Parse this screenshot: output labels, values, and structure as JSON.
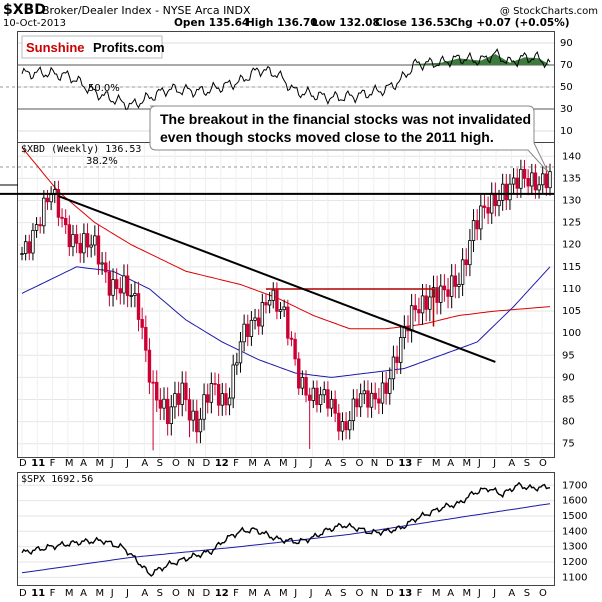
{
  "header": {
    "symbol": "$XBD",
    "name": "Broker/Dealer Index - NYSE Arca INDX",
    "date": "10-Oct-2013",
    "copyright": "@ StockCharts.com",
    "open": "Open 135.64",
    "high": "High 136.70",
    "low": "Low 132.08",
    "close": "Close 136.53",
    "chg": "Chg +0.07 (+0.05%)",
    "logo_a": "Sunshine",
    "logo_b": "Profits.com"
  },
  "rsi": {
    "ticks": [
      "90",
      "70",
      "50",
      "30",
      "10"
    ],
    "fib_label": "50.0%"
  },
  "main": {
    "legend": "$XBD (Weekly) 136.53",
    "fib_label": "38.2%",
    "ticks": [
      "140",
      "135",
      "130",
      "125",
      "120",
      "115",
      "110",
      "105",
      "100",
      "95",
      "90",
      "85",
      "80",
      "75"
    ],
    "callout": [
      "The breakout in the financial stocks was not invalidated",
      "even though stocks moved close to the 2011 high."
    ]
  },
  "months": [
    "D",
    "11",
    "F",
    "M",
    "A",
    "M",
    "J",
    "J",
    "A",
    "S",
    "O",
    "N",
    "D",
    "12",
    "F",
    "M",
    "A",
    "M",
    "J",
    "J",
    "A",
    "S",
    "O",
    "N",
    "D",
    "13",
    "F",
    "M",
    "A",
    "M",
    "J",
    "J",
    "A",
    "S",
    "O"
  ],
  "spx": {
    "legend": "$SPX 1692.56",
    "ticks": [
      "1700",
      "1600",
      "1500",
      "1400",
      "1300",
      "1200",
      "1100"
    ]
  },
  "colors": {
    "up": "#000000",
    "down": "#cc0033",
    "ma_red": "#dd0000",
    "ma_blue": "#1a1aaa",
    "rsi_fill": "#3d7a3d",
    "logo_red": "#cc0000"
  },
  "chart_data": [
    {
      "type": "line",
      "name": "RSI",
      "ylim": [
        0,
        100
      ],
      "x": [
        0,
        6,
        13,
        20,
        30,
        40,
        50,
        60,
        65,
        70,
        75,
        85,
        92,
        100,
        104,
        108,
        115,
        120,
        126,
        130,
        134,
        138,
        142,
        145
      ],
      "values": [
        62,
        63,
        60,
        45,
        33,
        48,
        46,
        55,
        66,
        62,
        46,
        40,
        42,
        48,
        56,
        71,
        72,
        76,
        74,
        80,
        72,
        77,
        76,
        70
      ]
    },
    {
      "type": "candlestick",
      "name": "$XBD Weekly",
      "ylim": [
        72,
        143
      ],
      "x_unit": "weeks since Dec 2010",
      "close_anchors": {
        "x": [
          0,
          4,
          8,
          12,
          16,
          20,
          24,
          28,
          32,
          36,
          40,
          44,
          48,
          52,
          56,
          60,
          64,
          68,
          72,
          76,
          80,
          84,
          88,
          92,
          96,
          100,
          104,
          108,
          112,
          116,
          120,
          124,
          128,
          132,
          136,
          140,
          145
        ],
        "close": [
          118,
          125,
          131,
          124,
          120,
          119,
          112,
          110,
          105,
          88,
          80,
          88,
          79,
          87,
          85,
          98,
          102,
          110,
          103,
          90,
          86,
          84,
          79,
          85,
          84,
          89,
          97,
          106,
          109,
          108,
          113,
          124,
          128,
          133,
          134,
          134,
          136.5
        ]
      },
      "horizontal_lines": [
        131.5,
        110
      ],
      "trendline": {
        "from": [
          10,
          131
        ],
        "to": [
          130,
          93.5
        ]
      },
      "ma_red": {
        "x": [
          0,
          10,
          20,
          30,
          45,
          60,
          70,
          80,
          90,
          100,
          110,
          120,
          130,
          145
        ],
        "values": [
          142,
          132,
          125,
          120,
          114,
          111,
          108,
          104,
          101,
          101,
          102,
          104,
          105,
          106
        ]
      },
      "ma_blue": {
        "x": [
          0,
          5,
          15,
          25,
          35,
          45,
          55,
          65,
          75,
          85,
          95,
          105,
          115,
          125,
          135,
          145
        ],
        "values": [
          109,
          111,
          115,
          114,
          110,
          103,
          98,
          94,
          91,
          90,
          91,
          92,
          95,
          98,
          106,
          115
        ]
      }
    },
    {
      "type": "line",
      "name": "$SPX",
      "ylim": [
        1050,
        1780
      ],
      "x": [
        0,
        8,
        16,
        22,
        28,
        32,
        35,
        40,
        46,
        52,
        56,
        60,
        64,
        70,
        76,
        80,
        84,
        88,
        92,
        96,
        100,
        104,
        108,
        112,
        116,
        120,
        124,
        128,
        132,
        136,
        140,
        145
      ],
      "values": [
        1260,
        1300,
        1330,
        1340,
        1290,
        1200,
        1120,
        1180,
        1230,
        1270,
        1350,
        1400,
        1410,
        1350,
        1330,
        1360,
        1410,
        1440,
        1420,
        1390,
        1400,
        1420,
        1480,
        1520,
        1560,
        1580,
        1650,
        1680,
        1640,
        1700,
        1680,
        1693
      ],
      "ma_blue": {
        "x": [
          0,
          30,
          60,
          90,
          120,
          145
        ],
        "values": [
          1130,
          1230,
          1300,
          1380,
          1490,
          1580
        ]
      }
    }
  ]
}
